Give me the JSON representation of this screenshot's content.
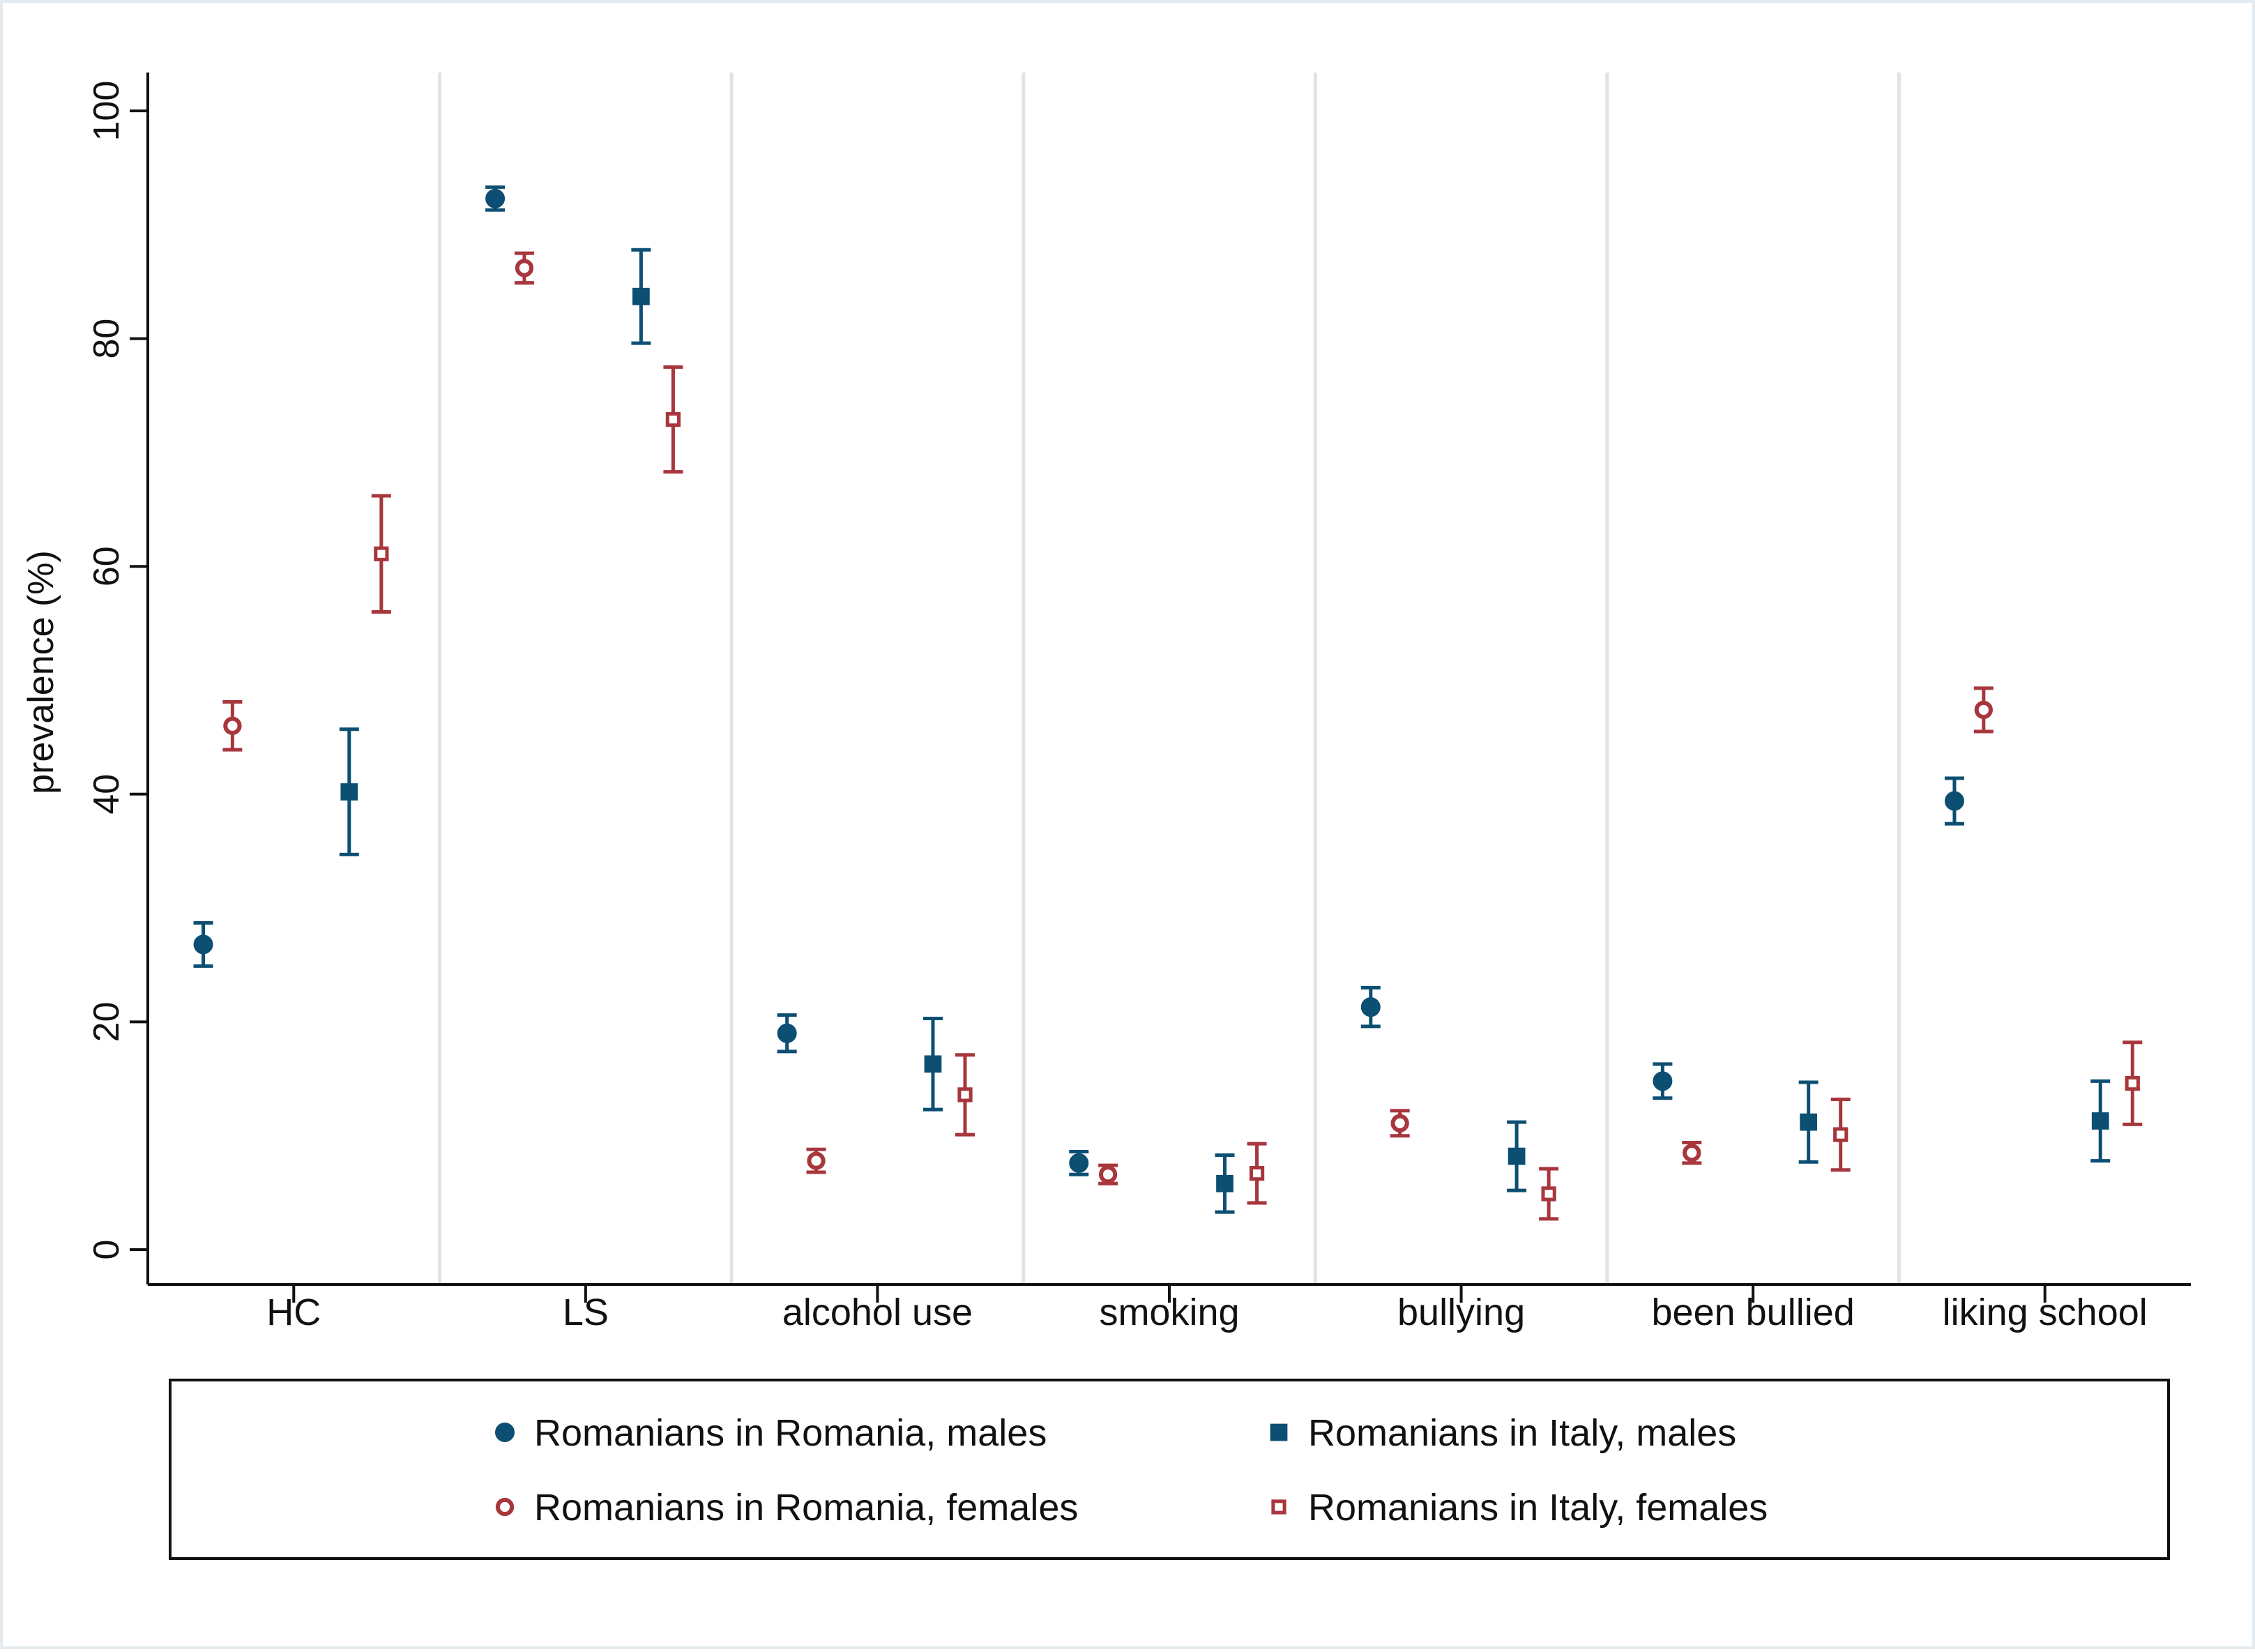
{
  "chart_data": {
    "type": "scatter",
    "subtype": "point-estimate-with-confidence-intervals",
    "title": "",
    "xlabel": "",
    "ylabel": "prevalence (%)",
    "ylim": [
      0,
      100
    ],
    "yticks": [
      0,
      20,
      40,
      60,
      80,
      100
    ],
    "grid": "vertical separators between categories",
    "categories": [
      "HC",
      "LS",
      "alcohol use",
      "smoking",
      "bullying",
      "been bullied",
      "liking school"
    ],
    "series": [
      {
        "name": "Romanians in Romania, males",
        "marker": "filled-circle",
        "color": "#0d4f73",
        "values": [
          26.8,
          92.3,
          19.0,
          7.6,
          21.3,
          14.8,
          39.4
        ],
        "ci_low": [
          24.9,
          91.3,
          17.4,
          6.6,
          19.6,
          13.3,
          37.4
        ],
        "ci_high": [
          28.7,
          93.3,
          20.6,
          8.6,
          23.0,
          16.3,
          41.4
        ]
      },
      {
        "name": "Romanians in Romania, females",
        "marker": "hollow-circle",
        "color": "#a8363d",
        "values": [
          46.0,
          86.2,
          7.8,
          6.6,
          11.1,
          8.5,
          47.4
        ],
        "ci_low": [
          43.9,
          84.9,
          6.8,
          5.8,
          10.0,
          7.6,
          45.5
        ],
        "ci_high": [
          48.1,
          87.5,
          8.8,
          7.4,
          12.2,
          9.4,
          49.3
        ]
      },
      {
        "name": "Romanians in Italy, males",
        "marker": "filled-square",
        "color": "#0d4f73",
        "values": [
          40.2,
          83.7,
          16.3,
          5.8,
          8.2,
          11.2,
          11.3
        ],
        "ci_low": [
          34.7,
          79.6,
          12.3,
          3.3,
          5.2,
          7.7,
          7.8
        ],
        "ci_high": [
          45.7,
          87.8,
          20.3,
          8.3,
          11.2,
          14.7,
          14.8
        ]
      },
      {
        "name": "Romanians in Italy, females",
        "marker": "hollow-square",
        "color": "#a8363d",
        "values": [
          61.1,
          72.9,
          13.6,
          6.7,
          4.9,
          10.1,
          14.6
        ],
        "ci_low": [
          56.0,
          68.3,
          10.1,
          4.1,
          2.7,
          7.0,
          11.0
        ],
        "ci_high": [
          66.2,
          77.5,
          17.1,
          9.3,
          7.1,
          13.2,
          18.2
        ]
      }
    ],
    "legend": {
      "position": "bottom",
      "order": [
        0,
        2,
        1,
        3
      ],
      "columns": 2
    }
  }
}
